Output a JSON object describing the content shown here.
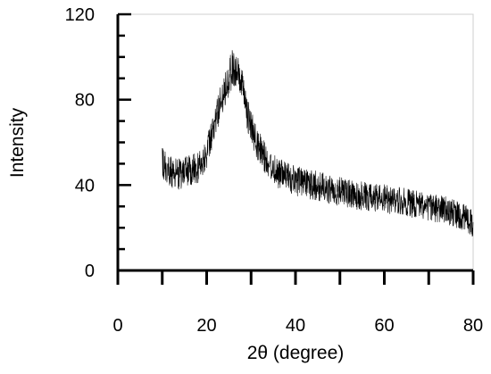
{
  "chart_data": {
    "type": "line",
    "title": "",
    "xlabel": "2θ (degree)",
    "ylabel": "Intensity",
    "xlim": [
      0,
      80
    ],
    "ylim": [
      0,
      120
    ],
    "xticks": [
      0,
      20,
      40,
      60,
      80
    ],
    "yticks": [
      0,
      40,
      80,
      120
    ],
    "x_minor_step": 10,
    "y_minor_step": 10,
    "grid": false,
    "legend": "none",
    "line_color": "#000000",
    "series": [
      {
        "x": [
          10,
          12,
          14,
          16,
          18,
          20,
          21,
          22,
          23,
          24,
          25,
          26,
          27,
          28,
          29,
          30,
          31,
          32,
          33,
          34,
          35,
          36,
          38,
          40,
          42,
          44,
          46,
          48,
          50,
          52,
          54,
          56,
          58,
          60,
          62,
          64,
          66,
          68,
          70,
          72,
          74,
          76,
          78,
          80
        ],
        "y": [
          50,
          46,
          45,
          47,
          48,
          55,
          62,
          70,
          78,
          85,
          91,
          95,
          92,
          85,
          75,
          67,
          61,
          57,
          53,
          50,
          48,
          46,
          44,
          42,
          41,
          40,
          39,
          38,
          37,
          36,
          35,
          34.5,
          34,
          33.5,
          33,
          32.5,
          31.5,
          31,
          30,
          29,
          28,
          26.5,
          25,
          22
        ],
        "noise_amplitude": 9
      }
    ]
  }
}
